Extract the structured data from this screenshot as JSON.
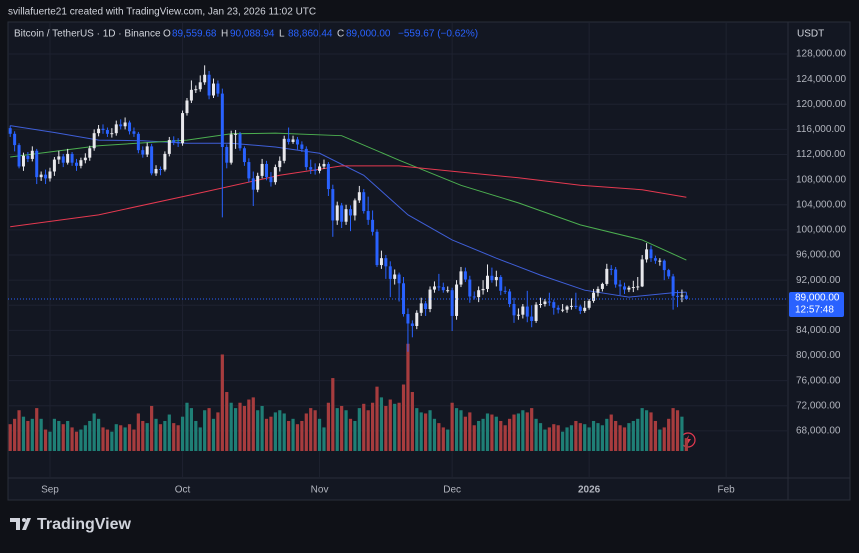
{
  "attribution": "svillafuerte21 created with TradingView.com, Jan 23, 2026 11:02 UTC",
  "brand": "TradingView",
  "chart_data": {
    "type": "candlestick",
    "title": "Bitcoin / TetherUS · 1D · Binance",
    "ohlc_header": [
      {
        "key": "O",
        "label": "89,559.68"
      },
      {
        "key": "H",
        "label": "90,088.94"
      },
      {
        "key": "L",
        "label": "88,860.44"
      },
      {
        "key": "C",
        "label": "89,000.00"
      }
    ],
    "change_label": "−559.67 (−0.62%)",
    "currency": "USDT",
    "last_price_label": "89,000.00",
    "countdown": "12:57:48",
    "up_color": "#e8e8ec",
    "down_color": "#2962ff",
    "volume_up_color": "#1f7f76",
    "volume_down_color": "#a73c3e",
    "grid": true,
    "ylim": [
      60500,
      133100
    ],
    "yticks": [
      {
        "value": 128000,
        "label": "128,000.00"
      },
      {
        "value": 124000,
        "label": "124,000.00"
      },
      {
        "value": 120000,
        "label": "120,000.00"
      },
      {
        "value": 116000,
        "label": "116,000.00"
      },
      {
        "value": 112000,
        "label": "112,000.00"
      },
      {
        "value": 108000,
        "label": "108,000.00"
      },
      {
        "value": 104000,
        "label": "104,000.00"
      },
      {
        "value": 100000,
        "label": "100,000.00"
      },
      {
        "value": 96000,
        "label": "96,000.00"
      },
      {
        "value": 92000,
        "label": "92,000.00"
      },
      {
        "value": 88000,
        "label": "88,000.00"
      },
      {
        "value": 84000,
        "label": "84,000.00"
      },
      {
        "value": 80000,
        "label": "80,000.00"
      },
      {
        "value": 76000,
        "label": "76,000.00"
      },
      {
        "value": 72000,
        "label": "72,000.00"
      },
      {
        "value": 68000,
        "label": "68,000.00"
      }
    ],
    "xlim": [
      -0.5,
      176
    ],
    "xticks": [
      {
        "value": 9,
        "label": "Sep"
      },
      {
        "value": 39,
        "label": "Oct"
      },
      {
        "value": 70,
        "label": "Nov"
      },
      {
        "value": 100,
        "label": "Dec"
      },
      {
        "value": 131,
        "label": "2026"
      },
      {
        "value": 162,
        "label": "Feb"
      }
    ],
    "candles": [
      [
        116200,
        116600,
        114800,
        115300
      ],
      [
        115300,
        115700,
        112500,
        113500
      ],
      [
        113500,
        113800,
        109800,
        110100
      ],
      [
        110100,
        112300,
        109400,
        111800
      ],
      [
        111800,
        112400,
        110800,
        111300
      ],
      [
        111300,
        113300,
        110900,
        112600
      ],
      [
        112600,
        112900,
        107300,
        108400
      ],
      [
        108400,
        109300,
        107800,
        108800
      ],
      [
        108800,
        109600,
        107300,
        108200
      ],
      [
        108200,
        109900,
        107700,
        109300
      ],
      [
        109300,
        111600,
        108600,
        111200
      ],
      [
        111200,
        112600,
        110500,
        111700
      ],
      [
        111700,
        112100,
        110000,
        110700
      ],
      [
        110700,
        112900,
        110400,
        112100
      ],
      [
        112100,
        112400,
        110200,
        110700
      ],
      [
        110700,
        111300,
        109400,
        110200
      ],
      [
        110200,
        111500,
        109800,
        111100
      ],
      [
        111100,
        112200,
        110600,
        111500
      ],
      [
        111500,
        113400,
        111000,
        113000
      ],
      [
        113000,
        116000,
        112600,
        115400
      ],
      [
        115400,
        116700,
        114900,
        116100
      ],
      [
        116100,
        116800,
        115300,
        115900
      ],
      [
        115900,
        116300,
        114800,
        115300
      ],
      [
        115300,
        116200,
        114700,
        115400
      ],
      [
        115400,
        117400,
        115000,
        116800
      ],
      [
        116800,
        117600,
        116000,
        116500
      ],
      [
        116500,
        117900,
        116000,
        117100
      ],
      [
        117100,
        117400,
        115200,
        115700
      ],
      [
        115700,
        116300,
        114800,
        115300
      ],
      [
        115300,
        115600,
        112200,
        112700
      ],
      [
        112700,
        113300,
        111500,
        112000
      ],
      [
        112000,
        113900,
        111600,
        113300
      ],
      [
        113300,
        113700,
        108700,
        109000
      ],
      [
        109000,
        110300,
        108600,
        109700
      ],
      [
        109700,
        110100,
        108700,
        109600
      ],
      [
        109600,
        112500,
        109300,
        112100
      ],
      [
        112100,
        114800,
        111700,
        114300
      ],
      [
        114300,
        114900,
        113500,
        114000
      ],
      [
        114000,
        114600,
        113200,
        113800
      ],
      [
        113800,
        119000,
        113400,
        118600
      ],
      [
        118600,
        121000,
        118200,
        120600
      ],
      [
        120600,
        123800,
        120200,
        122300
      ],
      [
        122300,
        123000,
        121800,
        122400
      ],
      [
        122400,
        124600,
        122000,
        123500
      ],
      [
        123500,
        126200,
        123100,
        124700
      ],
      [
        124700,
        125300,
        120800,
        121400
      ],
      [
        121400,
        124100,
        121000,
        123300
      ],
      [
        123300,
        123800,
        121200,
        121700
      ],
      [
        121700,
        122500,
        102000,
        113200
      ],
      [
        113200,
        113600,
        109800,
        110700
      ],
      [
        110700,
        115800,
        110400,
        115200
      ],
      [
        115200,
        115900,
        112900,
        115300
      ],
      [
        115300,
        115600,
        112600,
        113000
      ],
      [
        113000,
        113300,
        110200,
        110800
      ],
      [
        110800,
        111400,
        107600,
        108200
      ],
      [
        108200,
        109300,
        103800,
        106400
      ],
      [
        106400,
        109100,
        106000,
        108600
      ],
      [
        108600,
        111300,
        108200,
        110500
      ],
      [
        110500,
        111000,
        107900,
        108400
      ],
      [
        108400,
        109200,
        106900,
        107600
      ],
      [
        107600,
        110400,
        107200,
        110000
      ],
      [
        110000,
        111700,
        109300,
        111000
      ],
      [
        111000,
        115000,
        110600,
        114500
      ],
      [
        114500,
        116300,
        113600,
        114000
      ],
      [
        114000,
        115000,
        113700,
        114400
      ],
      [
        114400,
        114800,
        112800,
        113600
      ],
      [
        113600,
        114100,
        112400,
        112900
      ],
      [
        112900,
        113300,
        109500,
        110000
      ],
      [
        110000,
        111200,
        108900,
        109600
      ],
      [
        109600,
        110600,
        108800,
        109400
      ],
      [
        109400,
        110600,
        109000,
        110100
      ],
      [
        110100,
        111200,
        109700,
        110500
      ],
      [
        110500,
        110800,
        105400,
        106500
      ],
      [
        106500,
        107200,
        98900,
        101500
      ],
      [
        101500,
        104500,
        100800,
        103900
      ],
      [
        103900,
        104300,
        100300,
        101300
      ],
      [
        101300,
        104000,
        100800,
        103300
      ],
      [
        103300,
        103900,
        99800,
        102300
      ],
      [
        102300,
        105000,
        101500,
        104700
      ],
      [
        104700,
        107000,
        104300,
        106000
      ],
      [
        106000,
        106500,
        102600,
        103000
      ],
      [
        103000,
        105300,
        100800,
        101600
      ],
      [
        101600,
        103100,
        99100,
        99700
      ],
      [
        99700,
        100100,
        94100,
        94400
      ],
      [
        94400,
        96700,
        93800,
        95500
      ],
      [
        95500,
        96000,
        92200,
        94200
      ],
      [
        94200,
        95000,
        89300,
        92200
      ],
      [
        92200,
        93700,
        91300,
        92900
      ],
      [
        92900,
        93200,
        88600,
        91500
      ],
      [
        91500,
        92500,
        86200,
        86600
      ],
      [
        86600,
        87500,
        80600,
        85100
      ],
      [
        85100,
        85600,
        82900,
        84700
      ],
      [
        84700,
        87200,
        84200,
        86800
      ],
      [
        86800,
        89200,
        86300,
        88300
      ],
      [
        88300,
        88700,
        86300,
        87400
      ],
      [
        87400,
        91000,
        86900,
        90500
      ],
      [
        90500,
        91800,
        90000,
        91000
      ],
      [
        91000,
        93000,
        90300,
        90900
      ],
      [
        90900,
        91600,
        90000,
        90400
      ],
      [
        90400,
        91000,
        90000,
        90400
      ],
      [
        90400,
        90800,
        83900,
        86300
      ],
      [
        86300,
        92000,
        85700,
        91300
      ],
      [
        91300,
        94100,
        90900,
        93400
      ],
      [
        93400,
        94000,
        91700,
        92100
      ],
      [
        92100,
        92700,
        88400,
        89400
      ],
      [
        89400,
        90200,
        88900,
        89300
      ],
      [
        89300,
        91000,
        88500,
        90400
      ],
      [
        90400,
        92000,
        89700,
        90600
      ],
      [
        90600,
        94500,
        90100,
        92700
      ],
      [
        92700,
        94000,
        91600,
        92000
      ],
      [
        92000,
        93500,
        91000,
        92500
      ],
      [
        92500,
        92800,
        89600,
        90300
      ],
      [
        90300,
        91000,
        89800,
        90200
      ],
      [
        90200,
        90600,
        87700,
        88200
      ],
      [
        88200,
        89200,
        85200,
        86400
      ],
      [
        86400,
        87500,
        85700,
        86500
      ],
      [
        86500,
        88200,
        85900,
        87800
      ],
      [
        87800,
        90300,
        85300,
        86200
      ],
      [
        86200,
        88000,
        84500,
        85500
      ],
      [
        85500,
        88500,
        85200,
        88100
      ],
      [
        88100,
        89200,
        87600,
        88200
      ],
      [
        88200,
        89000,
        87800,
        88600
      ],
      [
        88600,
        90000,
        87900,
        88500
      ],
      [
        88500,
        88900,
        86500,
        87600
      ],
      [
        87600,
        88000,
        86700,
        87300
      ],
      [
        87300,
        88200,
        86900,
        87300
      ],
      [
        87300,
        88000,
        86800,
        87800
      ],
      [
        87800,
        89100,
        87300,
        87900
      ],
      [
        87900,
        90000,
        87400,
        87800
      ],
      [
        87800,
        88100,
        86600,
        87100
      ],
      [
        87100,
        88700,
        86800,
        87600
      ],
      [
        87600,
        89000,
        87300,
        88700
      ],
      [
        88700,
        90600,
        88400,
        90000
      ],
      [
        90000,
        91000,
        89400,
        90600
      ],
      [
        90600,
        91600,
        90200,
        91400
      ],
      [
        91400,
        94600,
        91100,
        93800
      ],
      [
        93800,
        94400,
        92800,
        93700
      ],
      [
        93700,
        94100,
        90800,
        91300
      ],
      [
        91300,
        92000,
        89600,
        91000
      ],
      [
        91000,
        91600,
        89800,
        90500
      ],
      [
        90500,
        91100,
        90100,
        90800
      ],
      [
        90800,
        91900,
        90100,
        90900
      ],
      [
        90900,
        92500,
        90400,
        91000
      ],
      [
        91000,
        96000,
        90900,
        95300
      ],
      [
        95300,
        97900,
        94800,
        96900
      ],
      [
        96900,
        97500,
        94900,
        95500
      ],
      [
        95500,
        95900,
        94600,
        95100
      ],
      [
        95100,
        95500,
        94300,
        95100
      ],
      [
        95100,
        95300,
        92000,
        93600
      ],
      [
        93600,
        93800,
        92200,
        92600
      ],
      [
        92600,
        93000,
        87300,
        89500
      ],
      [
        89500,
        90400,
        87700,
        89400
      ],
      [
        89400,
        90500,
        88500,
        89560
      ],
      [
        89559.68,
        90088.94,
        88860.44,
        89000
      ]
    ],
    "volume_ylim": [
      0,
      400
    ],
    "volume": [
      25,
      30,
      38,
      32,
      28,
      30,
      40,
      30,
      20,
      18,
      30,
      28,
      25,
      28,
      22,
      18,
      20,
      24,
      28,
      35,
      30,
      22,
      20,
      18,
      25,
      24,
      22,
      25,
      20,
      35,
      28,
      26,
      42,
      30,
      25,
      28,
      34,
      26,
      24,
      32,
      45,
      40,
      28,
      22,
      38,
      40,
      30,
      36,
      90,
      55,
      45,
      40,
      45,
      42,
      48,
      50,
      38,
      42,
      30,
      32,
      36,
      38,
      35,
      28,
      30,
      25,
      28,
      35,
      40,
      38,
      30,
      22,
      45,
      68,
      40,
      42,
      38,
      30,
      28,
      40,
      44,
      38,
      45,
      60,
      50,
      42,
      48,
      44,
      45,
      62,
      100,
      55,
      40,
      36,
      35,
      38,
      30,
      26,
      22,
      20,
      45,
      40,
      38,
      32,
      36,
      24,
      28,
      30,
      35,
      34,
      32,
      28,
      24,
      30,
      34,
      35,
      38,
      36,
      40,
      30,
      26,
      20,
      22,
      25,
      24,
      18,
      22,
      24,
      28,
      26,
      25,
      22,
      28,
      26,
      24,
      30,
      34,
      28,
      24,
      22,
      26,
      28,
      30,
      40,
      38,
      36,
      28,
      20,
      22,
      30,
      40,
      38,
      32,
      12
    ],
    "moving_averages": [
      {
        "color": "#3f5fd8",
        "x": [
          0,
          10,
          20,
          30,
          40,
          50,
          60,
          70,
          80,
          90,
          100,
          110,
          120,
          130,
          140,
          150,
          153
        ],
        "values": [
          116600,
          115500,
          114300,
          114200,
          113800,
          113800,
          113200,
          112200,
          108700,
          102400,
          98400,
          95500,
          92800,
          90400,
          89300,
          90000,
          90100
        ]
      },
      {
        "color": "#4caf50",
        "x": [
          0,
          20,
          40,
          50,
          60,
          75,
          88,
          102,
          115,
          129,
          143,
          153
        ],
        "values": [
          111600,
          113400,
          114300,
          115300,
          115400,
          115000,
          111100,
          107100,
          104300,
          100800,
          98400,
          95200
        ]
      },
      {
        "color": "#e53950",
        "x": [
          0,
          20,
          43,
          61,
          75,
          88,
          102,
          115,
          129,
          143,
          153
        ],
        "values": [
          100500,
          102400,
          105900,
          108700,
          110200,
          110200,
          109200,
          108300,
          107100,
          106400,
          105200
        ]
      }
    ]
  }
}
